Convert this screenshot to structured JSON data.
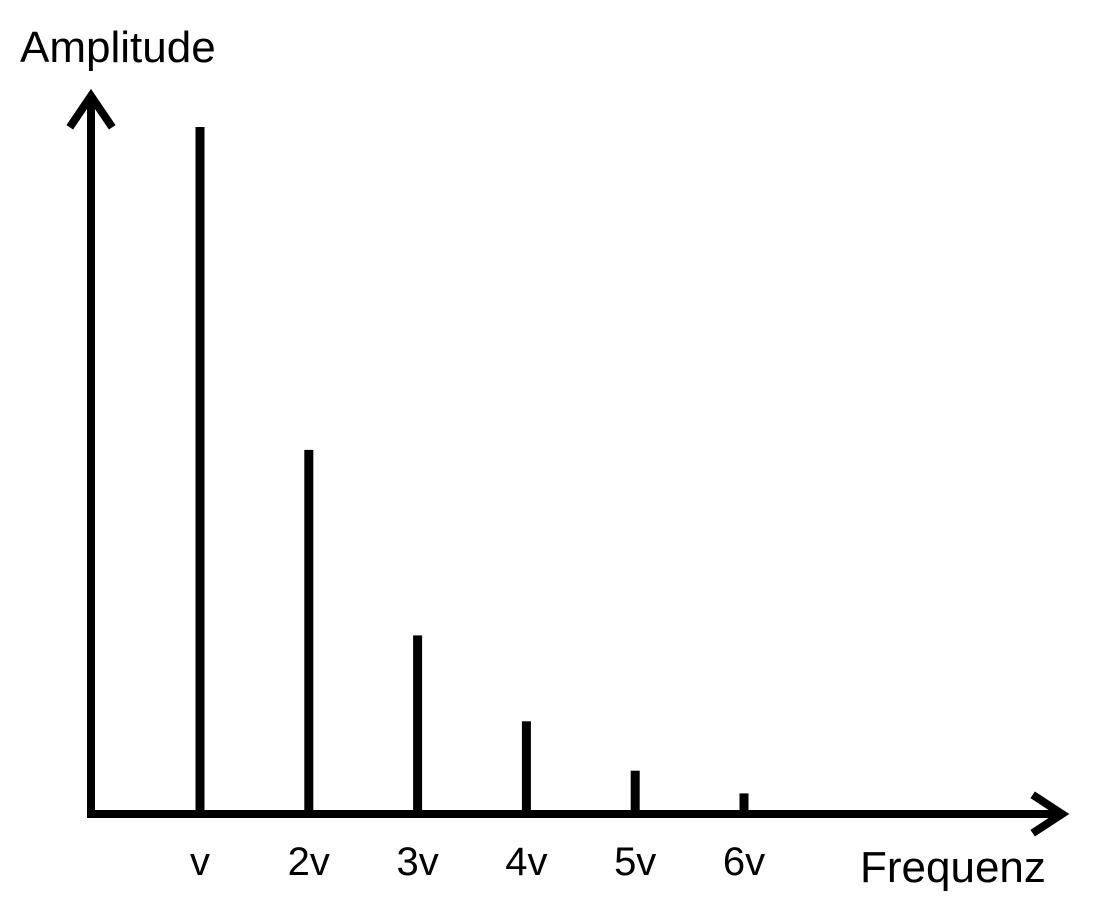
{
  "chart_data": {
    "type": "bar",
    "title": "",
    "xlabel": "Frequenz",
    "ylabel": "Amplitude",
    "categories": [
      "v",
      "2v",
      "3v",
      "4v",
      "5v",
      "6v"
    ],
    "values": [
      1.0,
      0.53,
      0.26,
      0.135,
      0.063,
      0.03
    ],
    "ylim": [
      0,
      1.0
    ],
    "grid": false,
    "legend": "none",
    "color": "#000000"
  }
}
